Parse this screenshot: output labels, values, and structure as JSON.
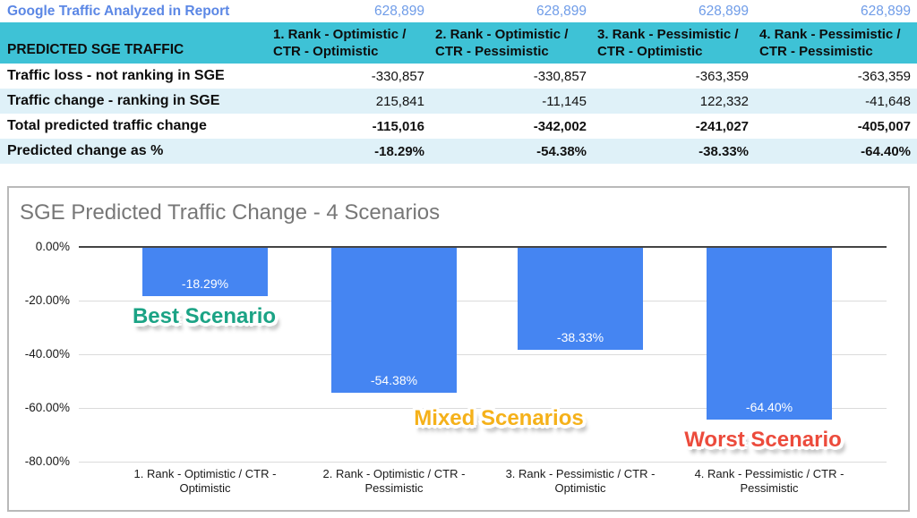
{
  "table": {
    "meta": {
      "label": "Google Traffic Analyzed in Report",
      "values": [
        "628,899",
        "628,899",
        "628,899",
        "628,899"
      ]
    },
    "header": {
      "label": "PREDICTED SGE TRAFFIC",
      "columns": [
        "1. Rank - Optimistic / CTR - Optimistic",
        "2. Rank - Optimistic / CTR - Pessimistic",
        "3. Rank - Pessimistic / CTR - Optimistic",
        "4. Rank - Pessimistic / CTR - Pessimistic"
      ]
    },
    "rows": [
      {
        "label": "Traffic loss - not ranking in SGE",
        "values": [
          "-330,857",
          "-330,857",
          "-363,359",
          "-363,359"
        ],
        "bold": false
      },
      {
        "label": "Traffic change - ranking in SGE",
        "values": [
          "215,841",
          "-11,145",
          "122,332",
          "-41,648"
        ],
        "bold": false
      },
      {
        "label": "Total predicted traffic change",
        "values": [
          "-115,016",
          "-342,002",
          "-241,027",
          "-405,007"
        ],
        "bold": true
      },
      {
        "label": "Predicted change as %",
        "values": [
          "-18.29%",
          "-54.38%",
          "-38.33%",
          "-64.40%"
        ],
        "bold": true
      }
    ]
  },
  "chart_data": {
    "type": "bar",
    "title": "SGE Predicted Traffic Change - 4 Scenarios",
    "categories": [
      "1. Rank - Optimistic / CTR - Optimistic",
      "2. Rank - Optimistic / CTR - Pessimistic",
      "3. Rank - Pessimistic / CTR - Optimistic",
      "4. Rank - Pessimistic / CTR - Pessimistic"
    ],
    "values": [
      -18.29,
      -54.38,
      -38.33,
      -64.4
    ],
    "value_labels": [
      "-18.29%",
      "-54.38%",
      "-38.33%",
      "-64.40%"
    ],
    "xlabel": "",
    "ylabel": "",
    "ylim": [
      -80,
      0
    ],
    "ytick_values": [
      0,
      -20,
      -40,
      -60,
      -80
    ],
    "ytick_labels": [
      "0.00%",
      "-20.00%",
      "-40.00%",
      "-60.00%",
      "-80.00%"
    ],
    "grid": true,
    "legend_position": "none",
    "bar_color": "#4585F2",
    "annotations": [
      {
        "text": "Best Scenario",
        "color": "#1BA385"
      },
      {
        "text": "Mixed Scenarios",
        "color": "#F5B11A"
      },
      {
        "text": "Worst Scenario",
        "color": "#EC4B3C"
      }
    ]
  },
  "colors": {
    "header_bg": "#3EC2D6",
    "row_stripe": "#DFF1F8",
    "meta_text": "#5B87E5",
    "meta_value_text": "#6F9CE8",
    "bar": "#4585F2",
    "chart_title": "#777777",
    "card_border": "#B9B9B9"
  }
}
